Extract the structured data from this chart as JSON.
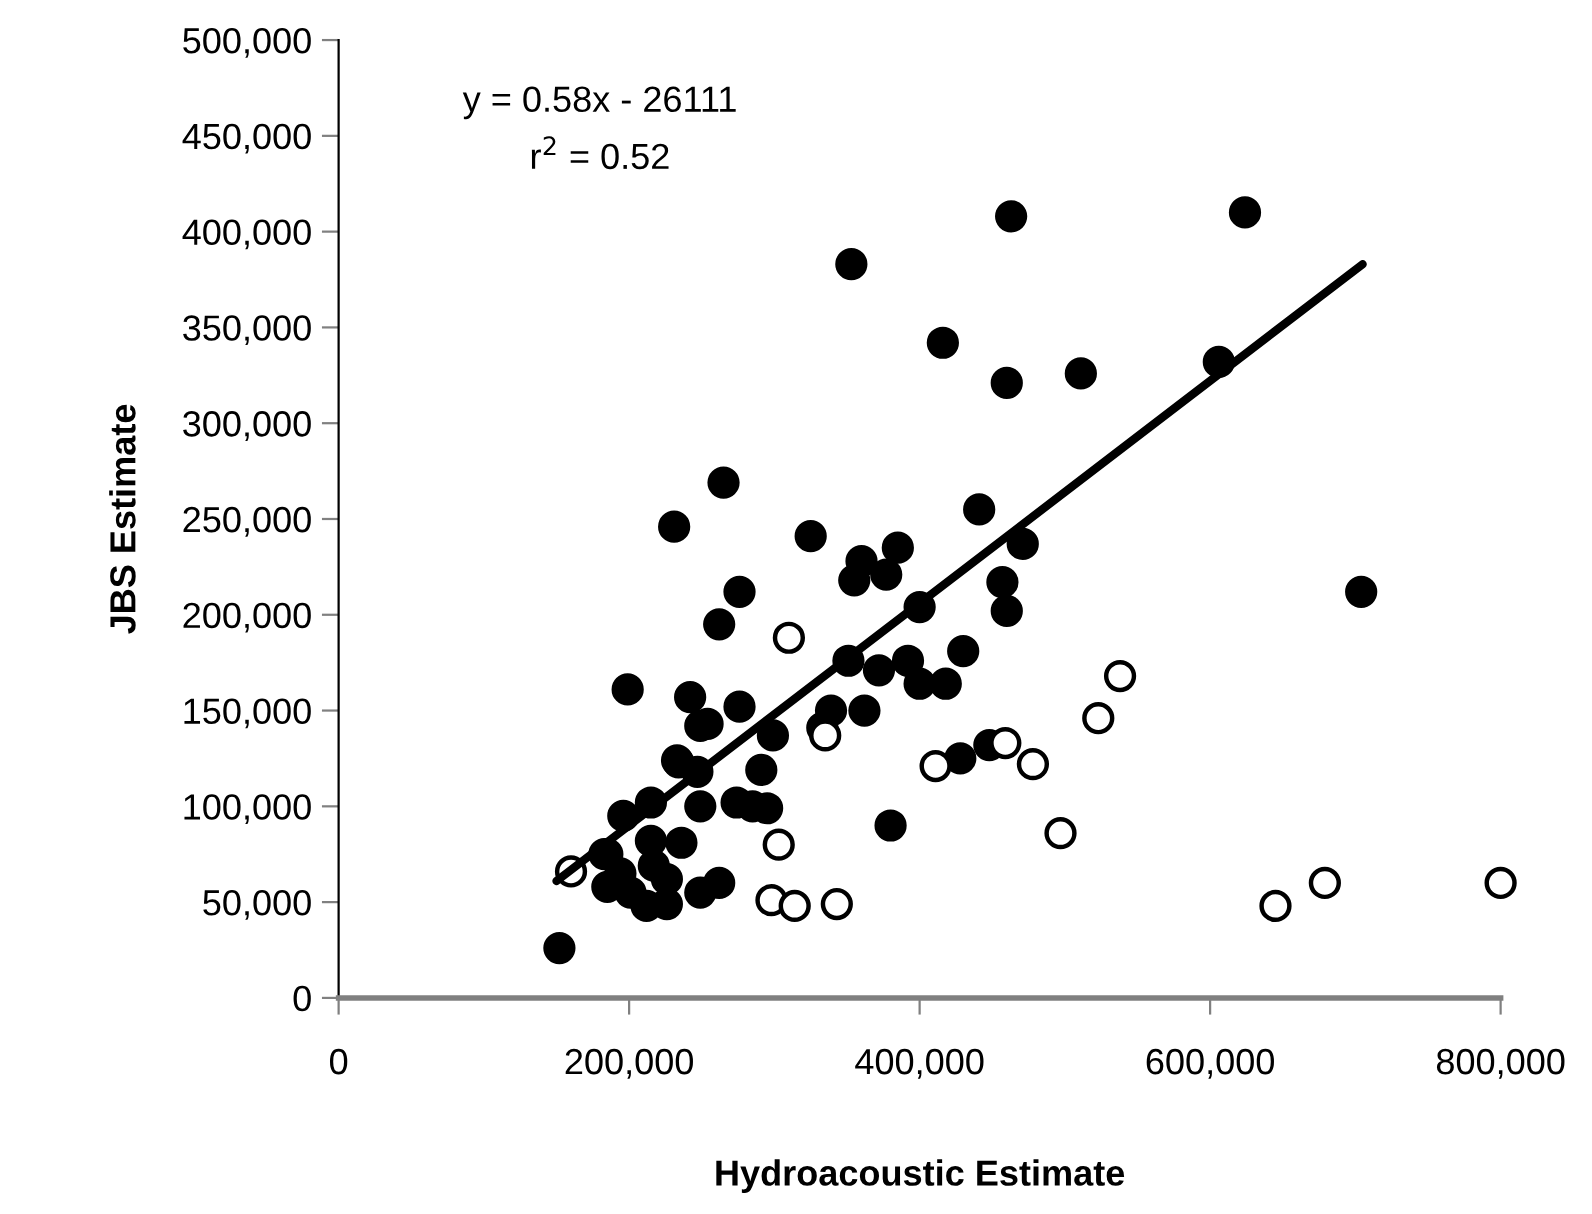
{
  "chart_data": {
    "type": "scatter",
    "xlabel": "Hydroacoustic Estimate",
    "ylabel": "JBS Estimate",
    "annotations": [
      "y = 0.58x - 26111",
      "r$^{2}$ = 0.52"
    ],
    "xlim": [
      0,
      800000
    ],
    "ylim": [
      0,
      500000
    ],
    "xticks": [
      0,
      {
        "value": 200000,
        "label": "200,000"
      },
      {
        "value": 400000,
        "label": "400,000"
      },
      {
        "value": 600000,
        "label": "600,000"
      },
      {
        "value": 800000,
        "label": "800,000"
      }
    ],
    "yticks": [
      0,
      {
        "value": 50000,
        "label": "50,000"
      },
      {
        "value": 100000,
        "label": "100,000"
      },
      {
        "value": 150000,
        "label": "150,000"
      },
      {
        "value": 200000,
        "label": "200,000"
      },
      {
        "value": 250000,
        "label": "250,000"
      },
      {
        "value": 300000,
        "label": "300,000"
      },
      {
        "value": 350000,
        "label": "350,000"
      },
      {
        "value": 400000,
        "label": "400,000"
      },
      {
        "value": 450000,
        "label": "450,000"
      },
      {
        "value": 500000,
        "label": "500,000"
      }
    ],
    "grid": false,
    "legend": false,
    "marker": "circle",
    "series": [
      {
        "type": "scatter",
        "color": "#000000",
        "x": [
          152000,
          199000,
          231000,
          463000,
          353000,
          416000,
          460000,
          265000,
          325000,
          441000,
          385000,
          360000,
          355000,
          377000,
          471000,
          457000,
          460000,
          276000,
          262000,
          400000,
          351000,
          372000,
          392000,
          400000,
          418000,
          430000,
          242000,
          249000,
          254000,
          276000,
          339000,
          333000,
          362000,
          299000,
          234000,
          247000,
          291000,
          428000,
          448000,
          196000,
          215000,
          249000,
          274000,
          285000,
          295000,
          380000,
          215000,
          236000,
          185000,
          201000,
          212000,
          226000,
          249000,
          262000,
          217000,
          226000,
          185000,
          194000,
          183000,
          233000,
          624000,
          511000,
          606000,
          704000
        ],
        "values": [
          26000,
          161000,
          246000,
          408000,
          383000,
          342000,
          321000,
          269000,
          241000,
          255000,
          235000,
          228000,
          218000,
          221000,
          237000,
          217000,
          202000,
          212000,
          195000,
          204000,
          176000,
          171000,
          176000,
          164000,
          164000,
          181000,
          157000,
          142000,
          143000,
          152000,
          150000,
          141000,
          150000,
          137000,
          123000,
          118000,
          119000,
          125000,
          132000,
          95000,
          102000,
          100000,
          102000,
          100000,
          99000,
          90000,
          82000,
          81000,
          75000,
          55000,
          48000,
          49000,
          55000,
          60000,
          69000,
          62000,
          58000,
          65000,
          75000,
          124000,
          410000,
          326000,
          332000,
          212000
        ]
      },
      {
        "type": "scatter",
        "color": "#ffffff",
        "x": [
          160000,
          310000,
          335000,
          411000,
          459000,
          478000,
          303000,
          298000,
          314000,
          343000,
          538000,
          523000,
          497000,
          645000,
          679000,
          800000
        ],
        "values": [
          66000,
          188000,
          137000,
          121000,
          133000,
          122000,
          80000,
          51000,
          48000,
          49000,
          168000,
          146000,
          86000,
          48000,
          60000,
          60000
        ]
      },
      {
        "type": "line",
        "color": "#000000",
        "line_style": "solid",
        "marker": "none",
        "x": [
          150000,
          705000
        ],
        "values": [
          61000,
          383000
        ]
      }
    ]
  }
}
